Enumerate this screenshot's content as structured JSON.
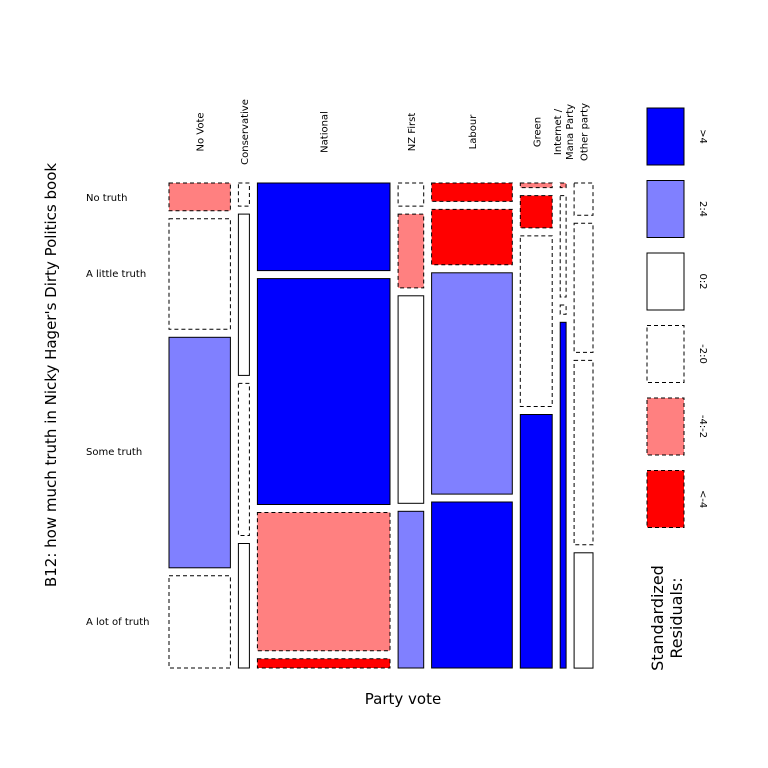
{
  "chart_data": {
    "type": "mosaic",
    "title": "",
    "xlabel": "Party vote",
    "ylabel": "B12: how much truth in Nicky Hager's Dirty Politics book",
    "columns": [
      "No Vote",
      "Conservative",
      "National",
      "NZ First",
      "Labour",
      "Green",
      "Internet / Mana Party",
      "Other party"
    ],
    "column_label_lines": [
      [
        "No Vote"
      ],
      [
        "Conservative"
      ],
      [
        "National"
      ],
      [
        "NZ First"
      ],
      [
        "Labour"
      ],
      [
        "Green"
      ],
      [
        "Internet /",
        "Mana Party"
      ],
      [
        "Other party"
      ]
    ],
    "rows": [
      "No truth",
      "A little truth",
      "Some truth",
      "A lot of truth"
    ],
    "column_widths": [
      0.156,
      0.028,
      0.337,
      0.065,
      0.205,
      0.081,
      0.015,
      0.048
    ],
    "cell_shares": [
      [
        0.06,
        0.24,
        0.5,
        0.2
      ],
      [
        0.05,
        0.35,
        0.33,
        0.27
      ],
      [
        0.19,
        0.49,
        0.3,
        0.02
      ],
      [
        0.05,
        0.16,
        0.45,
        0.34
      ],
      [
        0.04,
        0.12,
        0.48,
        0.36
      ],
      [
        0.01,
        0.07,
        0.37,
        0.55
      ],
      [
        0.01,
        0.22,
        0.02,
        0.75
      ],
      [
        0.07,
        0.28,
        0.4,
        0.25
      ]
    ],
    "cell_residual_class": [
      [
        "4:-2",
        "-2:0",
        "2:4",
        "-2:0"
      ],
      [
        "-2:0",
        "0:2",
        "-2:0",
        "0:2"
      ],
      [
        ">4",
        ">4",
        "4:-2",
        "<-4"
      ],
      [
        "-2:0",
        "4:-2",
        "0:2",
        "2:4"
      ],
      [
        "<-4",
        "<-4",
        "2:4",
        ">4"
      ],
      [
        "4:-2",
        "<-4",
        "-2:0",
        ">4"
      ],
      [
        "4:-2",
        "-2:0",
        "-2:0",
        ">4"
      ],
      [
        "-2:0",
        "-2:0",
        "-2:0",
        "0:2"
      ]
    ],
    "legend": {
      "title": "Standardized Residuals:",
      "placement": "right",
      "entries": [
        {
          "label": ">4",
          "color": "#0000ff",
          "dashed": false
        },
        {
          "label": "2:4",
          "color": "#8080ff",
          "dashed": false
        },
        {
          "label": "0:2",
          "color": "#ffffff",
          "dashed": false
        },
        {
          "label": "-2:0",
          "color": "#ffffff",
          "dashed": true
        },
        {
          "label": "-4:-2",
          "color": "#ff8080",
          "dashed": true
        },
        {
          "label": "<-4",
          "color": "#ff0000",
          "dashed": true
        }
      ]
    }
  }
}
